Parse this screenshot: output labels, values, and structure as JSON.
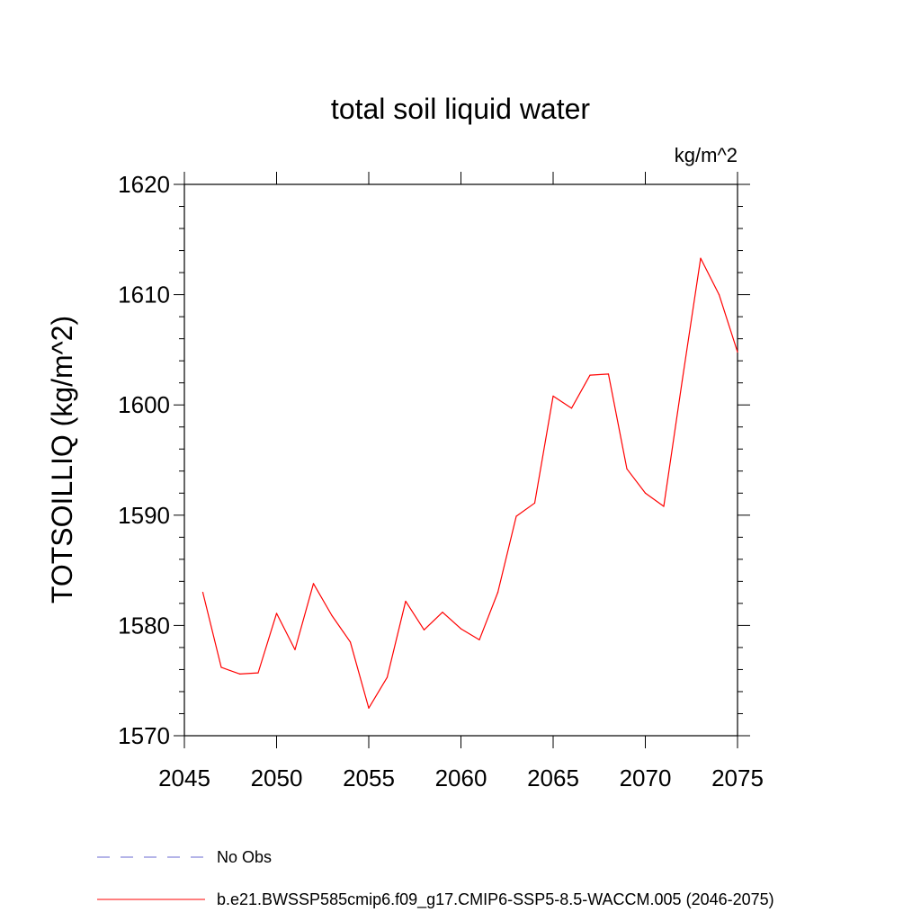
{
  "colors": {
    "series_line": "#ff0000",
    "obs_line": "#6a6ad0",
    "axis": "#000000",
    "background": "#ffffff"
  },
  "chart_data": {
    "type": "line",
    "title": "total soil liquid water",
    "units_label": "kg/m^2",
    "xlabel": "",
    "ylabel": "TOTSOILLIQ  (kg/m^2)",
    "xlim": [
      2045,
      2075
    ],
    "ylim": [
      1570,
      1620
    ],
    "x_ticks": [
      2045,
      2050,
      2055,
      2060,
      2065,
      2070,
      2075
    ],
    "y_ticks": [
      1570,
      1580,
      1590,
      1600,
      1610,
      1620
    ],
    "grid": false,
    "legend_placement": "bottom-left",
    "legend": [
      {
        "label": "No Obs",
        "style": "dashed",
        "color": "#6a6ad0"
      },
      {
        "label": "b.e21.BWSSP585cmip6.f09_g17.CMIP6-SSP5-8.5-WACCM.005 (2046-2075)",
        "style": "solid",
        "color": "#ff0000"
      }
    ],
    "series": [
      {
        "name": "b.e21.BWSSP585cmip6.f09_g17.CMIP6-SSP5-8.5-WACCM.005 (2046-2075)",
        "x": [
          2046,
          2047,
          2048,
          2049,
          2050,
          2051,
          2052,
          2053,
          2054,
          2055,
          2056,
          2057,
          2058,
          2059,
          2060,
          2061,
          2062,
          2063,
          2064,
          2065,
          2066,
          2067,
          2068,
          2069,
          2070,
          2071,
          2072,
          2073,
          2074,
          2075
        ],
        "values": [
          1583.0,
          1576.2,
          1575.6,
          1575.7,
          1581.1,
          1577.8,
          1583.8,
          1580.9,
          1578.5,
          1572.5,
          1575.3,
          1582.2,
          1579.6,
          1581.2,
          1579.7,
          1578.7,
          1583.0,
          1589.9,
          1591.1,
          1600.8,
          1599.7,
          1602.7,
          1602.8,
          1594.2,
          1592.0,
          1590.8,
          1602.2,
          1613.3,
          1610.0,
          1604.8
        ]
      }
    ]
  }
}
